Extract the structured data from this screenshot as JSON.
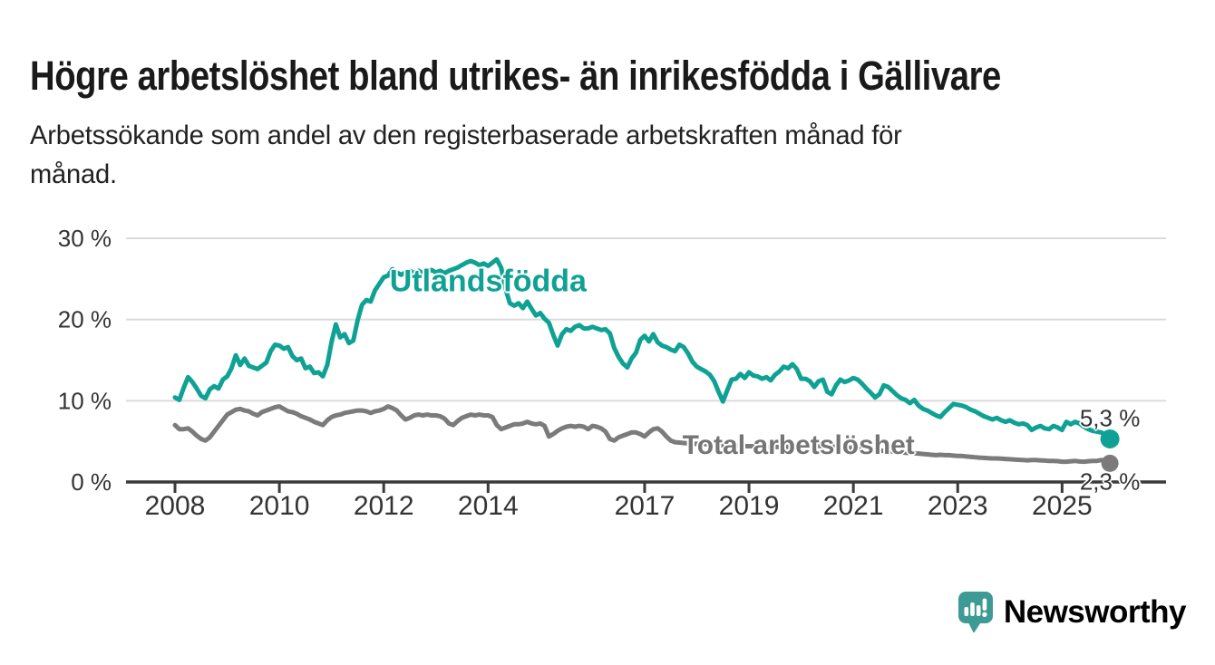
{
  "header": {
    "title": "Högre arbetslöshet bland utrikes- än inrikesfödda i Gällivare",
    "subtitle_lines": [
      "Arbetssökande som andel av den registerbaserade arbetskraften månad för",
      "månad."
    ]
  },
  "chart_data": {
    "type": "line",
    "title": "Högre arbetslöshet bland utrikes- än inrikesfödda i Gällivare",
    "subtitle": "Arbetssökande som andel av den registerbaserade arbetskraften månad för månad.",
    "unit": "%",
    "grid": "horizontal-only",
    "legend_position": "inline-labels-on-lines",
    "x_axis": {
      "range": [
        2007.9,
        2026.6
      ],
      "ticks": [
        2008,
        2010,
        2012,
        2014,
        2017,
        2019,
        2021,
        2023,
        2025
      ],
      "tick_labels": [
        "2008",
        "2010",
        "2012",
        "2014",
        "2017",
        "2019",
        "2021",
        "2023",
        "2025"
      ]
    },
    "y_axis": {
      "range": [
        0,
        30
      ],
      "gridline_values": [
        10,
        20,
        30
      ],
      "ticks": [
        {
          "label": "0 %",
          "value": 0
        },
        {
          "label": "10 %",
          "value": 10
        },
        {
          "label": "20 %",
          "value": 20
        },
        {
          "label": "30 %",
          "value": 30
        }
      ]
    },
    "series": [
      {
        "name": "Utlandsfödda",
        "color": "#0fa294",
        "label_color": "#0fa294",
        "label_anchor": {
          "year": 2014.0,
          "value": 24.6
        },
        "end_label": "5,3 %",
        "end_value": 5.3,
        "start_year": 2008.0,
        "points_per_year": 12,
        "values": [
          10.4,
          10.1,
          11.6,
          12.9,
          12.3,
          11.5,
          10.6,
          10.3,
          11.4,
          11.8,
          11.5,
          12.6,
          13.0,
          14.0,
          15.6,
          14.4,
          15.2,
          14.3,
          14.1,
          13.9,
          14.3,
          14.7,
          16.1,
          16.9,
          16.8,
          16.4,
          16.6,
          15.5,
          15.0,
          15.2,
          14.0,
          14.2,
          13.4,
          13.5,
          13.0,
          14.4,
          17.2,
          19.4,
          17.8,
          18.2,
          17.1,
          17.4,
          19.9,
          21.8,
          22.4,
          22.2,
          23.6,
          24.4,
          25.2,
          25.4,
          26.2,
          25.8,
          25.5,
          25.8,
          26.0,
          25.7,
          26.0,
          25.7,
          25.9,
          26.1,
          25.8,
          26.0,
          25.7,
          26.0,
          26.2,
          26.4,
          26.7,
          27.0,
          27.2,
          27.0,
          26.7,
          26.9,
          26.6,
          27.0,
          27.4,
          26.4,
          23.8,
          22.0,
          21.7,
          22.0,
          21.4,
          22.2,
          21.3,
          20.5,
          20.8,
          20.1,
          19.6,
          18.1,
          16.8,
          18.2,
          18.8,
          18.6,
          19.1,
          19.3,
          18.9,
          18.9,
          19.1,
          18.9,
          18.7,
          18.8,
          18.3,
          16.5,
          15.4,
          14.6,
          14.1,
          15.2,
          15.9,
          17.5,
          18.0,
          17.3,
          18.2,
          17.2,
          16.8,
          16.6,
          16.3,
          16.1,
          16.9,
          16.6,
          15.8,
          14.8,
          14.2,
          13.9,
          13.6,
          13.2,
          12.4,
          11.1,
          9.9,
          11.3,
          12.6,
          12.7,
          13.3,
          12.8,
          13.5,
          13.1,
          13.0,
          12.7,
          12.9,
          12.5,
          13.2,
          13.6,
          14.2,
          14.0,
          14.5,
          13.9,
          12.7,
          12.7,
          12.4,
          11.7,
          12.4,
          12.6,
          11.1,
          10.8,
          11.9,
          12.6,
          12.3,
          12.5,
          12.8,
          12.6,
          12.1,
          11.5,
          11.0,
          10.4,
          10.8,
          11.9,
          11.7,
          11.2,
          10.7,
          10.3,
          10.1,
          9.7,
          10.1,
          9.4,
          9.0,
          8.8,
          8.5,
          8.2,
          8.0,
          8.6,
          9.1,
          9.6,
          9.5,
          9.4,
          9.2,
          8.9,
          8.7,
          8.4,
          8.1,
          7.9,
          7.7,
          7.9,
          7.6,
          7.4,
          7.6,
          7.3,
          7.1,
          7.2,
          7.0,
          6.4,
          6.7,
          6.9,
          6.6,
          6.5,
          6.9,
          6.7,
          6.4,
          7.4,
          7.1,
          7.4,
          7.2,
          6.8,
          6.5,
          6.3,
          6.2,
          6.1,
          5.8,
          5.3
        ]
      },
      {
        "name": "Total arbetslöshet",
        "color": "#7b7b7b",
        "label_color": "#757575",
        "label_anchor": {
          "year": 2019.95,
          "value": 4.5
        },
        "end_label": "2,3 %",
        "end_value": 2.3,
        "start_year": 2008.0,
        "points_per_year": 12,
        "values": [
          7.0,
          6.5,
          6.5,
          6.6,
          6.2,
          5.7,
          5.3,
          5.1,
          5.5,
          6.2,
          6.9,
          7.6,
          8.3,
          8.6,
          8.9,
          9.0,
          8.8,
          8.7,
          8.4,
          8.2,
          8.6,
          8.8,
          9.0,
          9.2,
          9.3,
          9.0,
          8.7,
          8.6,
          8.4,
          8.1,
          7.9,
          7.7,
          7.4,
          7.2,
          7.0,
          7.6,
          8.0,
          8.2,
          8.3,
          8.5,
          8.6,
          8.7,
          8.8,
          8.8,
          8.7,
          8.5,
          8.7,
          8.8,
          9.0,
          9.3,
          9.1,
          8.8,
          8.2,
          7.7,
          7.9,
          8.2,
          8.3,
          8.2,
          8.3,
          8.2,
          8.2,
          8.1,
          7.8,
          7.2,
          7.0,
          7.5,
          7.9,
          8.1,
          8.3,
          8.2,
          8.3,
          8.2,
          8.2,
          8.0,
          7.0,
          6.5,
          6.7,
          6.9,
          7.1,
          7.1,
          7.2,
          7.4,
          7.2,
          7.1,
          7.2,
          6.9,
          5.6,
          5.9,
          6.3,
          6.6,
          6.8,
          6.9,
          6.8,
          6.9,
          6.8,
          6.5,
          6.9,
          6.8,
          6.6,
          6.2,
          5.3,
          5.1,
          5.5,
          5.7,
          5.9,
          6.1,
          6.1,
          5.9,
          5.6,
          6.1,
          6.5,
          6.6,
          6.2,
          5.6,
          5.1,
          4.9,
          4.85,
          4.8,
          4.75,
          4.7,
          4.7,
          4.68,
          4.65,
          4.62,
          4.6,
          4.55,
          4.5,
          4.5,
          4.5,
          4.48,
          4.45,
          4.42,
          4.4,
          4.4,
          4.38,
          4.36,
          4.34,
          4.32,
          4.3,
          4.3,
          4.3,
          4.32,
          4.35,
          4.38,
          4.4,
          4.45,
          4.5,
          4.48,
          4.45,
          4.42,
          4.4,
          4.37,
          4.34,
          4.3,
          4.26,
          4.23,
          4.2,
          4.13,
          4.07,
          4.0,
          3.95,
          3.9,
          3.87,
          3.83,
          3.8,
          3.75,
          3.7,
          3.65,
          3.6,
          3.57,
          3.53,
          3.5,
          3.45,
          3.4,
          3.35,
          3.3,
          3.35,
          3.3,
          3.3,
          3.25,
          3.2,
          3.2,
          3.15,
          3.1,
          3.05,
          3.0,
          2.97,
          2.93,
          2.9,
          2.9,
          2.87,
          2.83,
          2.8,
          2.77,
          2.73,
          2.7,
          2.67,
          2.7,
          2.7,
          2.67,
          2.63,
          2.6,
          2.6,
          2.57,
          2.5,
          2.5,
          2.55,
          2.6,
          2.52,
          2.5,
          2.55,
          2.6,
          2.6,
          2.7,
          2.6,
          2.3
        ]
      }
    ]
  },
  "colors": {
    "accent_teal": "#0fa294",
    "line_gray": "#7b7b7b",
    "axis_dark": "#3a3a3a",
    "gridline": "#dbdbdb",
    "text_dark": "#333333",
    "brand_teal": "#3e9a94"
  },
  "footer": {
    "brand": "Newsworthy",
    "logo_icon": "bar-chart-speech-bubble-icon"
  }
}
